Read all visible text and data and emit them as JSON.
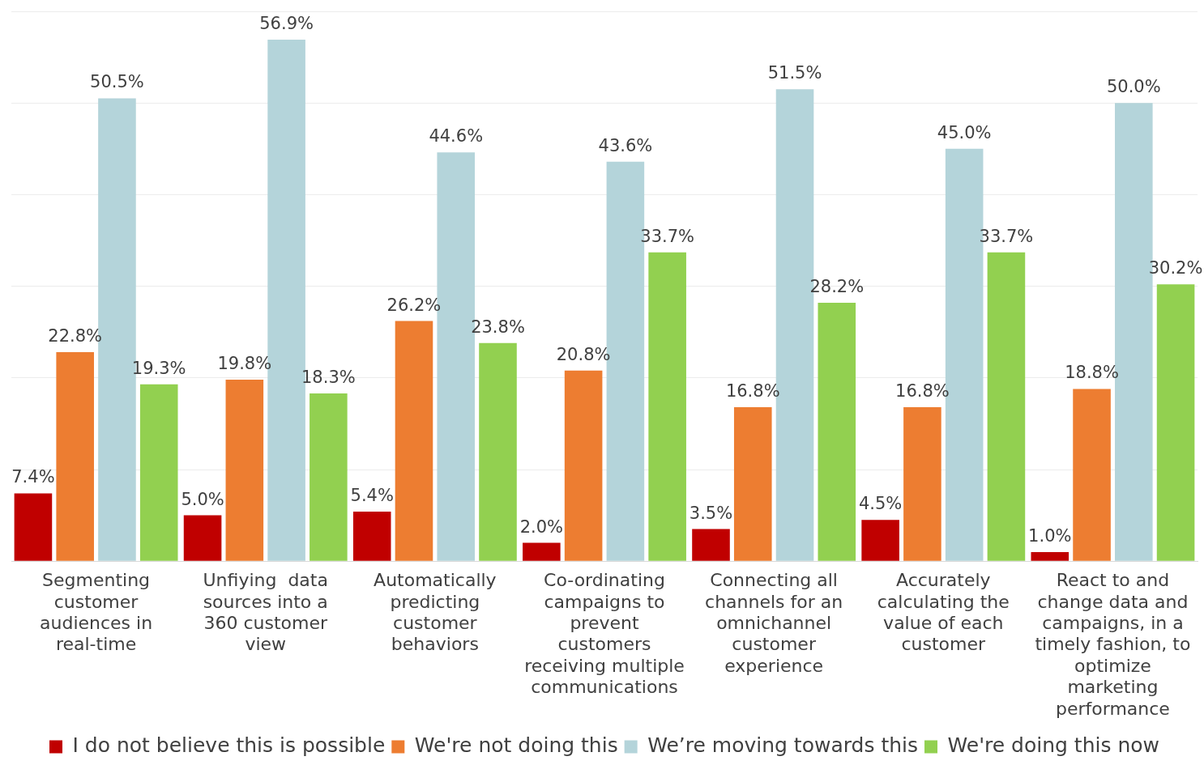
{
  "chart_data": {
    "type": "bar",
    "categories": [
      "Segmenting customer audiences in real-time",
      "Unfiying  data sources into a 360 customer view",
      "Automatically predicting customer behaviors",
      "Co-ordinating campaigns to prevent customers receiving multiple communications",
      "Connecting all channels for an omnichannel customer experience",
      "Accurately calculating the value of each customer",
      "React to and change data and campaigns, in a timely fashion, to optimize marketing performance"
    ],
    "series": [
      {
        "name": "I do not believe this is possible",
        "color": "#c00000",
        "values": [
          7.4,
          5.0,
          5.4,
          2.0,
          3.5,
          4.5,
          1.0
        ],
        "value_labels": [
          "7.4%",
          "5.0%",
          "5.4%",
          "2.0%",
          "3.5%",
          "4.5%",
          "1.0%"
        ]
      },
      {
        "name": "We're not doing this",
        "color": "#ed7d31",
        "values": [
          22.8,
          19.8,
          26.2,
          20.8,
          16.8,
          16.8,
          18.8
        ],
        "value_labels": [
          "22.8%",
          "19.8%",
          "26.2%",
          "20.8%",
          "16.8%",
          "16.8%",
          "18.8%"
        ]
      },
      {
        "name": "We’re moving towards this",
        "color": "#b4d4da",
        "values": [
          50.5,
          56.9,
          44.6,
          43.6,
          51.5,
          45.0,
          50.0
        ],
        "value_labels": [
          "50.5%",
          "56.9%",
          "44.6%",
          "43.6%",
          "51.5%",
          "45.0%",
          "50.0%"
        ]
      },
      {
        "name": "We're doing this now",
        "color": "#92d050",
        "values": [
          19.3,
          18.3,
          23.8,
          33.7,
          28.2,
          33.7,
          30.2
        ],
        "value_labels": [
          "19.3%",
          "18.3%",
          "23.8%",
          "33.7%",
          "28.2%",
          "33.7%",
          "30.2%"
        ]
      }
    ],
    "ylim": [
      0,
      60
    ],
    "yticks": [
      {
        "value": 0,
        "label": null
      },
      {
        "value": 10,
        "label": null
      },
      {
        "value": 20,
        "label": null
      },
      {
        "value": 30,
        "label": null
      },
      {
        "value": 40,
        "label": null
      },
      {
        "value": 50,
        "label": null
      },
      {
        "value": 60,
        "label": null
      }
    ],
    "grid": "y",
    "tick_labels": "x",
    "legend": "bottom"
  }
}
